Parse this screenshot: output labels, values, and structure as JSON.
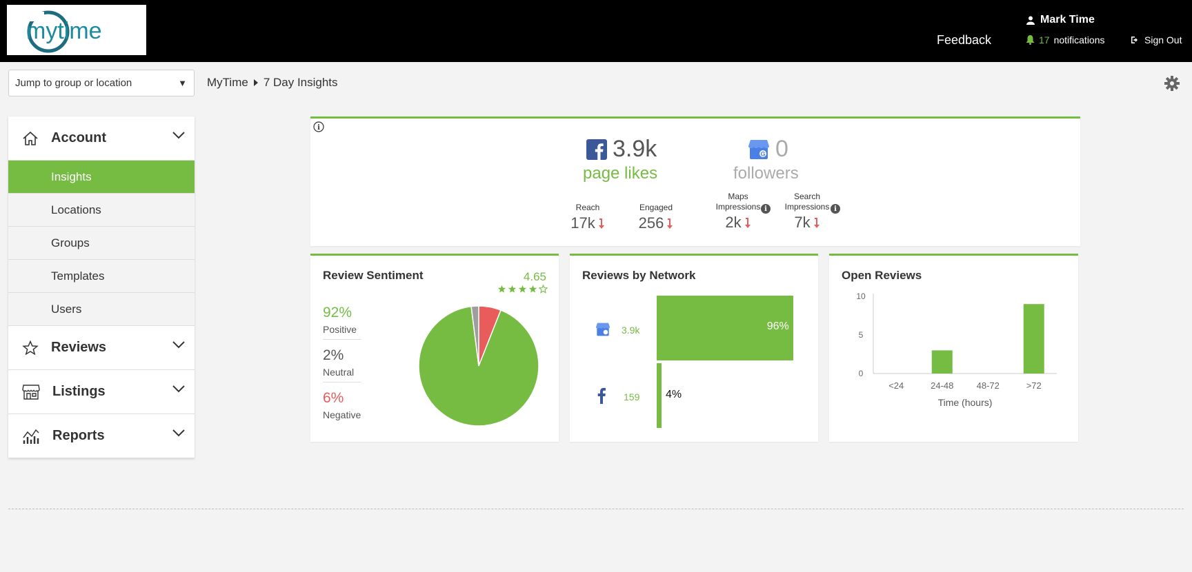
{
  "header": {
    "logo_text": "mytime",
    "user_name": "Mark Time",
    "feedback_label": "Feedback",
    "notifications_count": "17",
    "notifications_label": "notifications",
    "signout_label": "Sign Out"
  },
  "subheader": {
    "jump_placeholder": "Jump to group or location",
    "breadcrumb": [
      "MyTime",
      "7 Day Insights"
    ]
  },
  "sidebar": {
    "account_label": "Account",
    "account_items": [
      "Insights",
      "Locations",
      "Groups",
      "Templates",
      "Users"
    ],
    "active_item": "Insights",
    "reviews_label": "Reviews",
    "listings_label": "Listings",
    "reports_label": "Reports"
  },
  "social": {
    "facebook_count": "3.9k",
    "facebook_label": "page likes",
    "google_count": "0",
    "google_label": "followers",
    "metrics": [
      {
        "label": "Reach",
        "value": "17k"
      },
      {
        "label": "Engaged",
        "value": "256"
      },
      {
        "label": "Maps\nImpressions",
        "value": "2k"
      },
      {
        "label": "Search\nImpressions",
        "value": "7k"
      }
    ]
  },
  "sentiment": {
    "title": "Review Sentiment",
    "rating": "4.65",
    "stars_filled": 4,
    "stars_total": 5,
    "positive_pct": "92%",
    "positive_label": "Positive",
    "neutral_pct": "2%",
    "neutral_label": "Neutral",
    "negative_pct": "6%",
    "negative_label": "Negative"
  },
  "network": {
    "title": "Reviews by Network",
    "google_count": "3.9k",
    "google_pct": "96%",
    "google_share": 96,
    "facebook_count": "159",
    "facebook_pct": "4%",
    "facebook_share": 4
  },
  "open_reviews": {
    "title": "Open Reviews"
  },
  "colors": {
    "green": "#76bc43",
    "red": "#e85c5c",
    "gray": "#9e9e9e",
    "facebook": "#3b5998",
    "google_blue": "#4a7fe6"
  },
  "chart_data": {
    "type": "bar",
    "title": "Open Reviews",
    "categories": [
      "<24",
      "24-48",
      "48-72",
      ">72"
    ],
    "values": [
      0,
      3,
      0,
      9
    ],
    "xlabel": "Time (hours)",
    "ylabel": "",
    "ylim": [
      0,
      10
    ],
    "yticks": [
      0,
      5,
      10
    ],
    "grid": false
  }
}
